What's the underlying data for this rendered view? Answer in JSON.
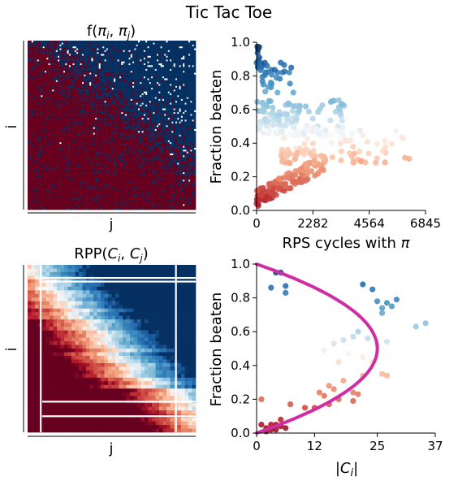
{
  "suptitle": "Tic Tac Toe",
  "chart_data": [
    {
      "type": "heatmap",
      "title_pre": "f(",
      "title_a": "π",
      "title_a_sub": "i",
      "title_sep": ", ",
      "title_b": "π",
      "title_b_sub": "j",
      "title_post": ")",
      "xlabel": "j",
      "ylabel": "i",
      "colormap": "RdBu",
      "pattern": "binary outcome matrix; red (win) mostly below the anti-diagonal, blue mostly above, noisy boundary",
      "colors": {
        "red": "#67001f",
        "blue": "#053061",
        "white": "#ffffff"
      }
    },
    {
      "type": "scatter",
      "xlabel_pre": "RPS cycles with ",
      "xlabel_sym": "π",
      "ylabel": "Fraction beaten",
      "xlim": [
        0,
        6845
      ],
      "ylim": [
        0,
        1.0
      ],
      "xticks": [
        "0",
        "2282",
        "4564",
        "6845"
      ],
      "yticks": [
        "0.0",
        "0.2",
        "0.4",
        "0.6",
        "0.8",
        "1.0"
      ],
      "clusters": [
        {
          "x_range": [
            0,
            200
          ],
          "y_range": [
            0.82,
            0.98
          ],
          "n": 18
        },
        {
          "x_range": [
            150,
            1500
          ],
          "y_range": [
            0.7,
            0.88
          ],
          "n": 30
        },
        {
          "x_range": [
            0,
            3600
          ],
          "y_range": [
            0.44,
            0.66
          ],
          "n": 120
        },
        {
          "x_range": [
            1000,
            6300
          ],
          "y_range": [
            0.28,
            0.48
          ],
          "n": 90
        },
        {
          "x_range": [
            0,
            2800
          ],
          "y_range": [
            0.04,
            0.32
          ],
          "n": 150,
          "trend": "rising"
        }
      ],
      "colormap": "RdBu by fraction beaten"
    },
    {
      "type": "heatmap",
      "title_pre": "RPP(",
      "title_a": "C",
      "title_a_sub": "i",
      "title_sep": ", ",
      "title_b": "C",
      "title_b_sub": "j",
      "title_post": ")",
      "xlabel": "j",
      "ylabel": "i",
      "colormap": "RdBu",
      "pattern": "smooth gradient: deep red bottom-left, white diagonal band, deep blue top-right"
    },
    {
      "type": "scatter",
      "xlabel_pre": "|",
      "xlabel_sym": "C",
      "xlabel_sub": "i",
      "xlabel_post": "|",
      "ylabel": "Fraction beaten",
      "xlim": [
        0,
        37
      ],
      "ylim": [
        0,
        1.0
      ],
      "xticks": [
        "0",
        "12",
        "25",
        "37"
      ],
      "yticks": [
        "0.0",
        "0.2",
        "0.4",
        "0.6",
        "0.8",
        "1.0"
      ],
      "points": [
        [
          4,
          0.95
        ],
        [
          5,
          0.95
        ],
        [
          3,
          0.86
        ],
        [
          6,
          0.87
        ],
        [
          6,
          0.83
        ],
        [
          22,
          0.88
        ],
        [
          24,
          0.85
        ],
        [
          25,
          0.78
        ],
        [
          26,
          0.74
        ],
        [
          27,
          0.77
        ],
        [
          28,
          0.75
        ],
        [
          29,
          0.79
        ],
        [
          26,
          0.71
        ],
        [
          33,
          0.63
        ],
        [
          35,
          0.65
        ],
        [
          18,
          0.55
        ],
        [
          16,
          0.53
        ],
        [
          20,
          0.57
        ],
        [
          21,
          0.6
        ],
        [
          23,
          0.56
        ],
        [
          25,
          0.52
        ],
        [
          27,
          0.54
        ],
        [
          14,
          0.49
        ],
        [
          19,
          0.47
        ],
        [
          22,
          0.45
        ],
        [
          24,
          0.42
        ],
        [
          17,
          0.42
        ],
        [
          26,
          0.35
        ],
        [
          27,
          0.34
        ],
        [
          18,
          0.31
        ],
        [
          22,
          0.34
        ],
        [
          15,
          0.28
        ],
        [
          16,
          0.26
        ],
        [
          13,
          0.24
        ],
        [
          14,
          0.22
        ],
        [
          20,
          0.24
        ],
        [
          21,
          0.23
        ],
        [
          17,
          0.2
        ],
        [
          15,
          0.17
        ],
        [
          12,
          0.15
        ],
        [
          10,
          0.15
        ],
        [
          20,
          0.19
        ],
        [
          1,
          0.2
        ],
        [
          7,
          0.17
        ],
        [
          5,
          0.08
        ],
        [
          3,
          0.05
        ],
        [
          4,
          0.02
        ],
        [
          5,
          0.04
        ],
        [
          2,
          0.01
        ],
        [
          6,
          0.03
        ],
        [
          3,
          0.02
        ],
        [
          1,
          0.05
        ],
        [
          4,
          0.05
        ],
        [
          2,
          0.03
        ]
      ],
      "fit_curve": {
        "description": "x = 4*25*y*(1-y)",
        "peak_x": 25,
        "color": "#d02ca4"
      }
    }
  ]
}
